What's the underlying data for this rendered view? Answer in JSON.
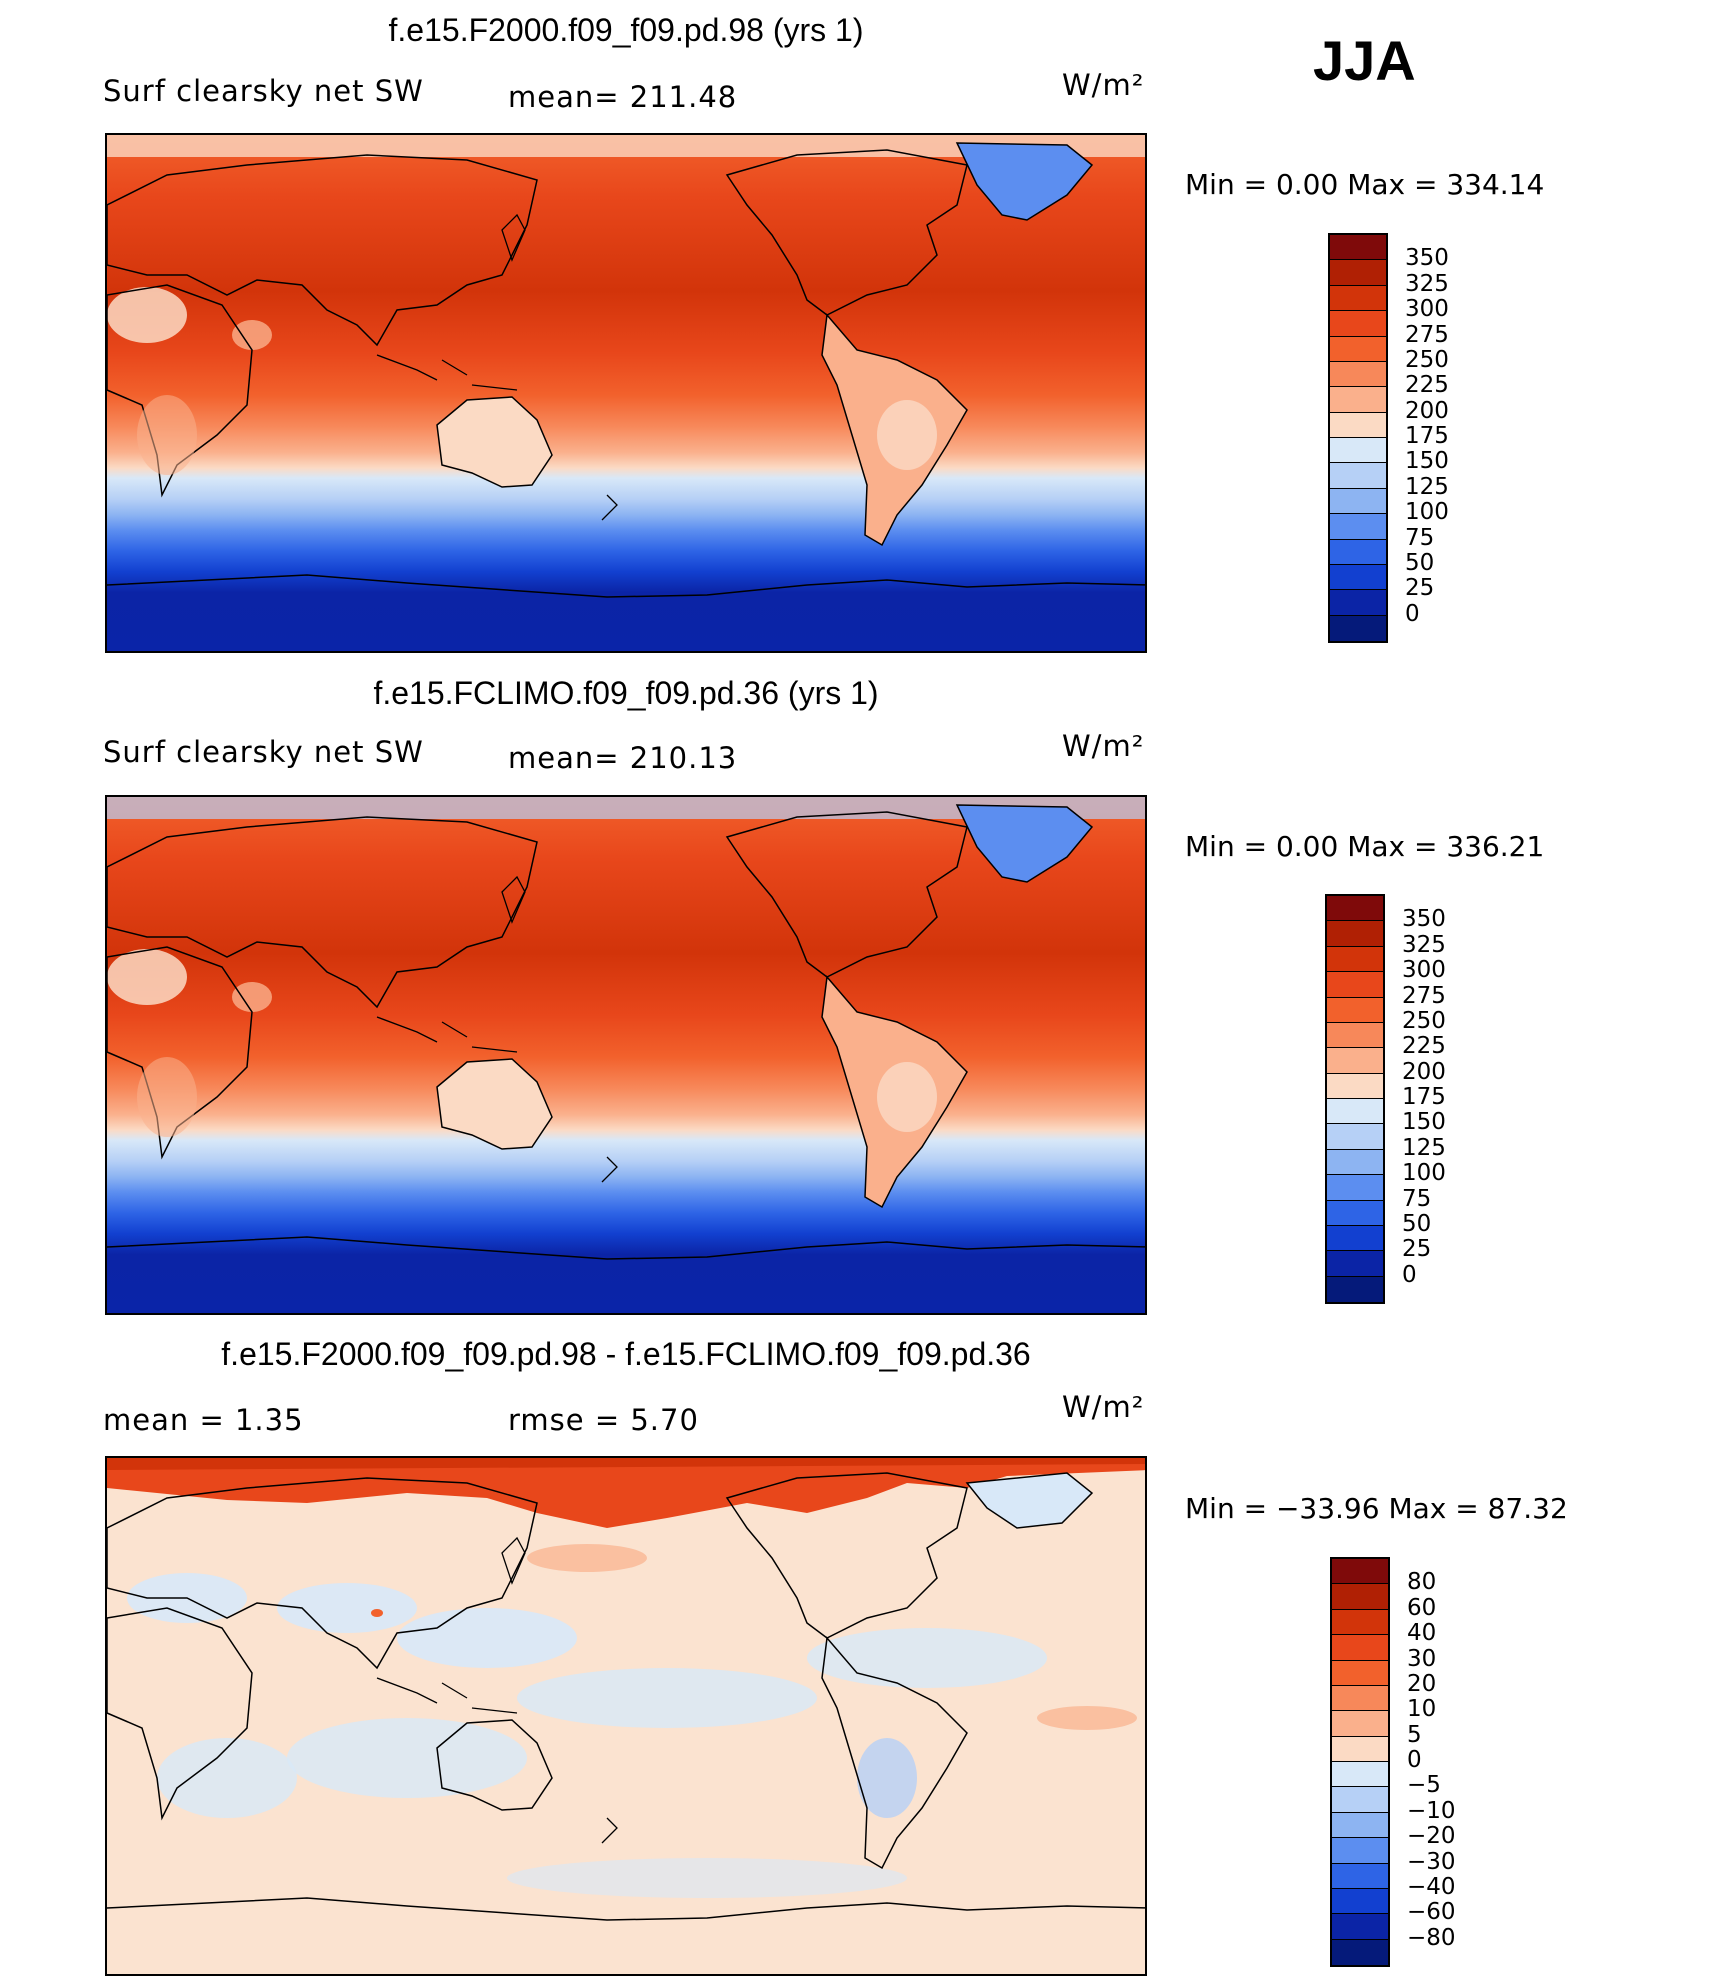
{
  "season": "JJA",
  "panels": [
    {
      "title": "f.e15.F2000.f09_f09.pd.98 (yrs 1)",
      "left_label": "Surf clearsky net SW",
      "mid_label": "mean=  211.48",
      "right_label": "W/m²",
      "minmax": "Min  =     0.00  Max  =  334.14",
      "colorbar_labels": [
        "350",
        "325",
        "300",
        "275",
        "250",
        "225",
        "200",
        "175",
        "150",
        "125",
        "100",
        "75",
        "50",
        "25",
        "0"
      ],
      "colorbar_colors": [
        "#7f0a0a",
        "#b02004",
        "#d2340a",
        "#e8471b",
        "#f2612c",
        "#f7885a",
        "#fab08c",
        "#fbdac4",
        "#d8e8f8",
        "#b6d0f6",
        "#8db4f2",
        "#5c8ef0",
        "#2e64e6",
        "#1240d0",
        "#0b24a6",
        "#051a7a"
      ],
      "type": "abs"
    },
    {
      "title": "f.e15.FCLIMO.f09_f09.pd.36 (yrs 1)",
      "left_label": "Surf clearsky net SW",
      "mid_label": "mean=  210.13",
      "right_label": "W/m²",
      "minmax": "Min  =     0.00  Max  =  336.21",
      "colorbar_labels": [
        "350",
        "325",
        "300",
        "275",
        "250",
        "225",
        "200",
        "175",
        "150",
        "125",
        "100",
        "75",
        "50",
        "25",
        "0"
      ],
      "colorbar_colors": [
        "#7f0a0a",
        "#b02004",
        "#d2340a",
        "#e8471b",
        "#f2612c",
        "#f7885a",
        "#fab08c",
        "#fbdac4",
        "#d8e8f8",
        "#b6d0f6",
        "#8db4f2",
        "#5c8ef0",
        "#2e64e6",
        "#1240d0",
        "#0b24a6",
        "#051a7a"
      ],
      "type": "abs"
    },
    {
      "title": "f.e15.F2000.f09_f09.pd.98 - f.e15.FCLIMO.f09_f09.pd.36",
      "left_label": "mean  =     1.35",
      "mid_label": "rmse  =     5.70",
      "right_label": "W/m²",
      "minmax": "Min  = −33.96  Max  =   87.32",
      "colorbar_labels": [
        "80",
        "60",
        "40",
        "30",
        "20",
        "10",
        "5",
        "0",
        "−5",
        "−10",
        "−20",
        "−30",
        "−40",
        "−60",
        "−80"
      ],
      "colorbar_colors": [
        "#7f0a0a",
        "#b02004",
        "#d2340a",
        "#e8471b",
        "#f2612c",
        "#f7885a",
        "#fab08c",
        "#fbdac4",
        "#d8e8f8",
        "#b6d0f6",
        "#8db4f2",
        "#5c8ef0",
        "#2e64e6",
        "#1240d0",
        "#0b24a6",
        "#051a7a"
      ],
      "type": "diff"
    }
  ]
}
